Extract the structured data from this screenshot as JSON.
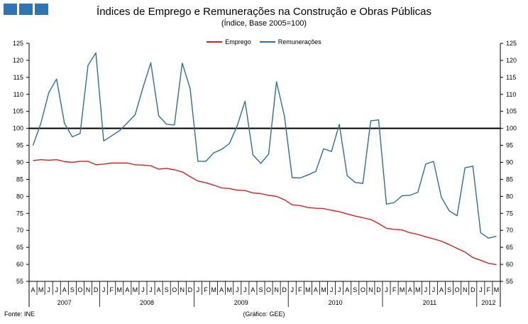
{
  "header": {
    "title": "Índices de Emprego  e Remunerações  na Construção e Obras Públicas",
    "subtitle": "(Índice,  Base 2005=100)"
  },
  "footer": {
    "source": "Fonte:  INE",
    "credit": "(Gráfico:  GEE)"
  },
  "chart_data": {
    "type": "line",
    "title": "Índices de Emprego  e Remunerações  na Construção e Obras Públicas",
    "subtitle": "(Índice,  Base 2005=100)",
    "ylim": [
      55,
      125
    ],
    "yticks": [
      55,
      60,
      65,
      70,
      75,
      80,
      85,
      90,
      95,
      100,
      105,
      110,
      115,
      120,
      125
    ],
    "y_axis_both_sides": true,
    "reference_line": 100,
    "grid": false,
    "legend_position": "top-center",
    "months": [
      "A",
      "M",
      "J",
      "J",
      "A",
      "S",
      "O",
      "N",
      "D",
      "J",
      "F",
      "M",
      "A",
      "M",
      "J",
      "J",
      "A",
      "S",
      "O",
      "N",
      "D",
      "J",
      "F",
      "M",
      "A",
      "M",
      "J",
      "J",
      "A",
      "S",
      "O",
      "N",
      "D",
      "J",
      "F",
      "M",
      "A",
      "M",
      "J",
      "J",
      "A",
      "S",
      "O",
      "N",
      "D",
      "J",
      "F",
      "M",
      "A",
      "M",
      "J",
      "J",
      "A",
      "S",
      "O",
      "N",
      "D",
      "J",
      "F",
      "M"
    ],
    "years": [
      {
        "label": "2007",
        "start": 0,
        "count": 9
      },
      {
        "label": "2008",
        "start": 9,
        "count": 12
      },
      {
        "label": "2009",
        "start": 21,
        "count": 12
      },
      {
        "label": "2010",
        "start": 33,
        "count": 12
      },
      {
        "label": "2011",
        "start": 45,
        "count": 12
      },
      {
        "label": "2012",
        "start": 57,
        "count": 3
      }
    ],
    "series": [
      {
        "name": "Emprego",
        "color": "#d42020",
        "values": [
          90.5,
          90.8,
          90.6,
          90.8,
          90.2,
          90.0,
          90.3,
          90.3,
          89.3,
          89.5,
          89.8,
          89.8,
          89.8,
          89.3,
          89.2,
          89.0,
          88.0,
          88.2,
          87.8,
          87.2,
          85.8,
          84.5,
          84.0,
          83.3,
          82.5,
          82.3,
          81.8,
          81.7,
          81.0,
          80.8,
          80.3,
          80.0,
          79.0,
          77.5,
          77.3,
          76.7,
          76.5,
          76.4,
          75.9,
          75.5,
          74.8,
          74.2,
          73.7,
          73.2,
          72.0,
          70.6,
          70.3,
          70.1,
          69.3,
          68.8,
          68.1,
          67.5,
          66.8,
          65.8,
          64.7,
          63.6,
          62.0,
          61.2,
          60.3,
          59.9
        ]
      },
      {
        "name": "Remunerações",
        "color": "#2f6e9c",
        "values": [
          95,
          101.5,
          110.5,
          114.5,
          101.5,
          97.5,
          98.5,
          118.5,
          122.2,
          96.3,
          97.8,
          99.3,
          101.6,
          104.0,
          112.0,
          119.3,
          103.7,
          101.2,
          101.0,
          119.2,
          111.7,
          90.3,
          90.3,
          92.8,
          93.8,
          95.5,
          100.8,
          108.0,
          92.2,
          89.7,
          92.4,
          113.7,
          103.7,
          85.5,
          85.4,
          86.3,
          87.3,
          94.0,
          93.2,
          101.2,
          86.1,
          84.1,
          83.8,
          102.2,
          102.5,
          77.7,
          78.2,
          80.2,
          80.3,
          81.2,
          89.5,
          90.3,
          79.7,
          75.7,
          74.3,
          88.4,
          88.9,
          69.3,
          67.7,
          68.3
        ]
      }
    ]
  }
}
